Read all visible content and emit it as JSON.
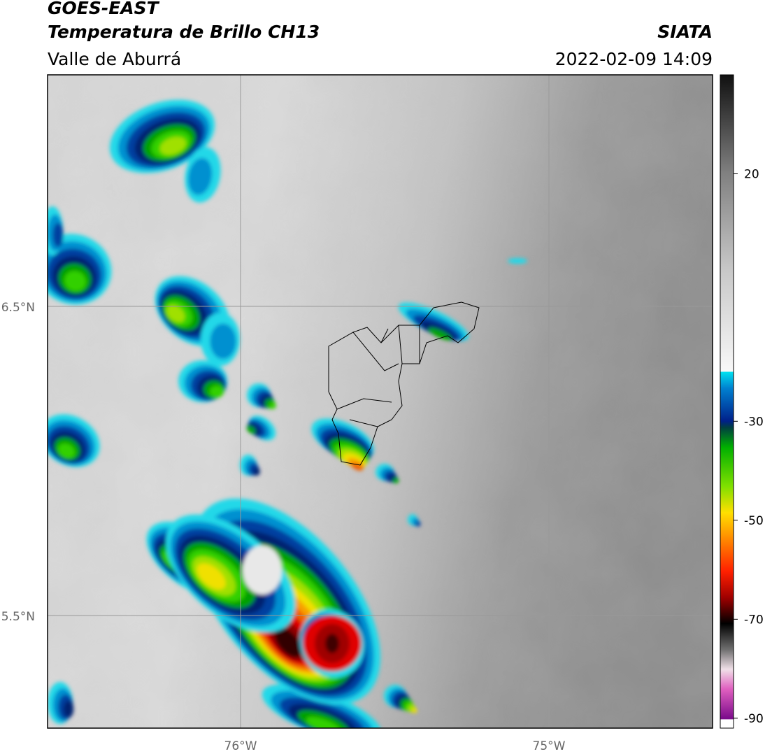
{
  "header": {
    "satellite": "GOES-EAST",
    "product": "Temperatura de Brillo CH13",
    "region": "Valle de Aburrá",
    "agency": "SIATA",
    "timestamp": "2022-02-09 14:09"
  },
  "map": {
    "lat_labels": [
      "6.5°N",
      "5.5°N"
    ],
    "lon_labels": [
      "76°W",
      "75°W"
    ]
  },
  "colorbar": {
    "lim": [
      -92,
      40
    ],
    "ticks": [
      20,
      -30,
      -50,
      -70,
      -90
    ]
  }
}
